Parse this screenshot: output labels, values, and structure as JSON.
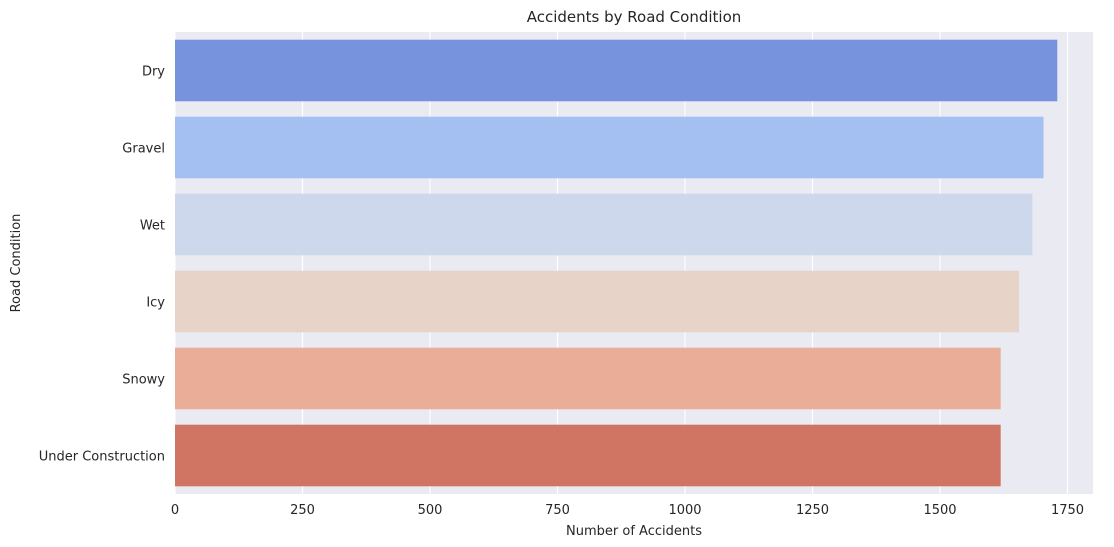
{
  "chart_data": {
    "type": "bar",
    "orientation": "horizontal",
    "title": "Accidents by Road Condition",
    "xlabel": "Number of Accidents",
    "ylabel": "Road Condition",
    "categories": [
      "Dry",
      "Gravel",
      "Wet",
      "Icy",
      "Snowy",
      "Under Construction"
    ],
    "values": [
      1730,
      1703,
      1681,
      1655,
      1619,
      1619
    ],
    "colors": [
      "#7793dd",
      "#a4bff2",
      "#cdd8ec",
      "#e8d3c8",
      "#eaad97",
      "#d07563"
    ],
    "xlim": [
      0,
      1800
    ],
    "xticks": [
      0,
      250,
      500,
      750,
      1000,
      1250,
      1500,
      1750
    ],
    "grid": true,
    "background": "#eaeaf2",
    "grid_color": "#ffffff"
  }
}
